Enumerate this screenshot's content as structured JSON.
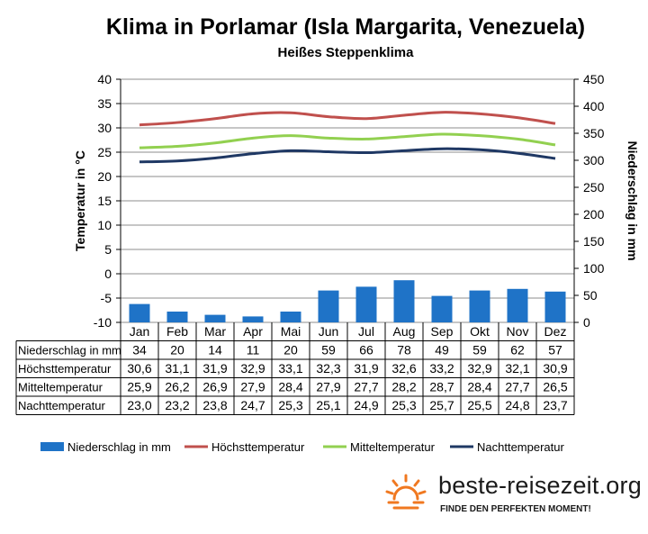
{
  "title": "Klima in Porlamar (Isla Margarita, Venezuela)",
  "subtitle": "Heißes Steppenklima",
  "chart_data": {
    "type": "bar+line",
    "categories": [
      "Jan",
      "Feb",
      "Mar",
      "Apr",
      "Mai",
      "Jun",
      "Jul",
      "Aug",
      "Sep",
      "Okt",
      "Nov",
      "Dez"
    ],
    "y_left_label": "Temperatur in °C",
    "y_right_label": "Niederschlag in mm",
    "y_left_range": [
      -10,
      40
    ],
    "y_left_ticks": [
      "40",
      "35",
      "30",
      "25",
      "20",
      "15",
      "10",
      "5",
      "0",
      "-5",
      "-10"
    ],
    "y_right_range": [
      0,
      450
    ],
    "y_right_ticks": [
      "450",
      "400",
      "350",
      "300",
      "250",
      "200",
      "150",
      "100",
      "50",
      "0"
    ],
    "grid": "horizontal",
    "series": [
      {
        "name": "Niederschlag in mm",
        "kind": "bar",
        "axis": "right",
        "color": "#1f73c7",
        "values": [
          34,
          20,
          14,
          11,
          20,
          59,
          66,
          78,
          49,
          59,
          62,
          57
        ],
        "labels": [
          "34",
          "20",
          "14",
          "11",
          "20",
          "59",
          "66",
          "78",
          "49",
          "59",
          "62",
          "57"
        ]
      },
      {
        "name": "Höchsttemperatur",
        "kind": "line",
        "axis": "left",
        "color": "#c0504d",
        "values": [
          30.6,
          31.1,
          31.9,
          32.9,
          33.1,
          32.3,
          31.9,
          32.6,
          33.2,
          32.9,
          32.1,
          30.9
        ],
        "labels": [
          "30,6",
          "31,1",
          "31,9",
          "32,9",
          "33,1",
          "32,3",
          "31,9",
          "32,6",
          "33,2",
          "32,9",
          "32,1",
          "30,9"
        ]
      },
      {
        "name": "Mitteltemperatur",
        "kind": "line",
        "axis": "left",
        "color": "#92d050",
        "values": [
          25.9,
          26.2,
          26.9,
          27.9,
          28.4,
          27.9,
          27.7,
          28.2,
          28.7,
          28.4,
          27.7,
          26.5
        ],
        "labels": [
          "25,9",
          "26,2",
          "26,9",
          "27,9",
          "28,4",
          "27,9",
          "27,7",
          "28,2",
          "28,7",
          "28,4",
          "27,7",
          "26,5"
        ]
      },
      {
        "name": "Nachttemperatur",
        "kind": "line",
        "axis": "left",
        "color": "#1f3864",
        "values": [
          23.0,
          23.2,
          23.8,
          24.7,
          25.3,
          25.1,
          24.9,
          25.3,
          25.7,
          25.5,
          24.8,
          23.7
        ],
        "labels": [
          "23,0",
          "23,2",
          "23,8",
          "24,7",
          "25,3",
          "25,1",
          "24,9",
          "25,3",
          "25,7",
          "25,5",
          "24,8",
          "23,7"
        ]
      }
    ],
    "legend_position": "bottom"
  },
  "logo": {
    "text": "beste-reisezeit.org",
    "slogan": "FINDE DEN PERFEKTEN MOMENT!",
    "icon": "sun-icon",
    "color": "#f07820"
  }
}
